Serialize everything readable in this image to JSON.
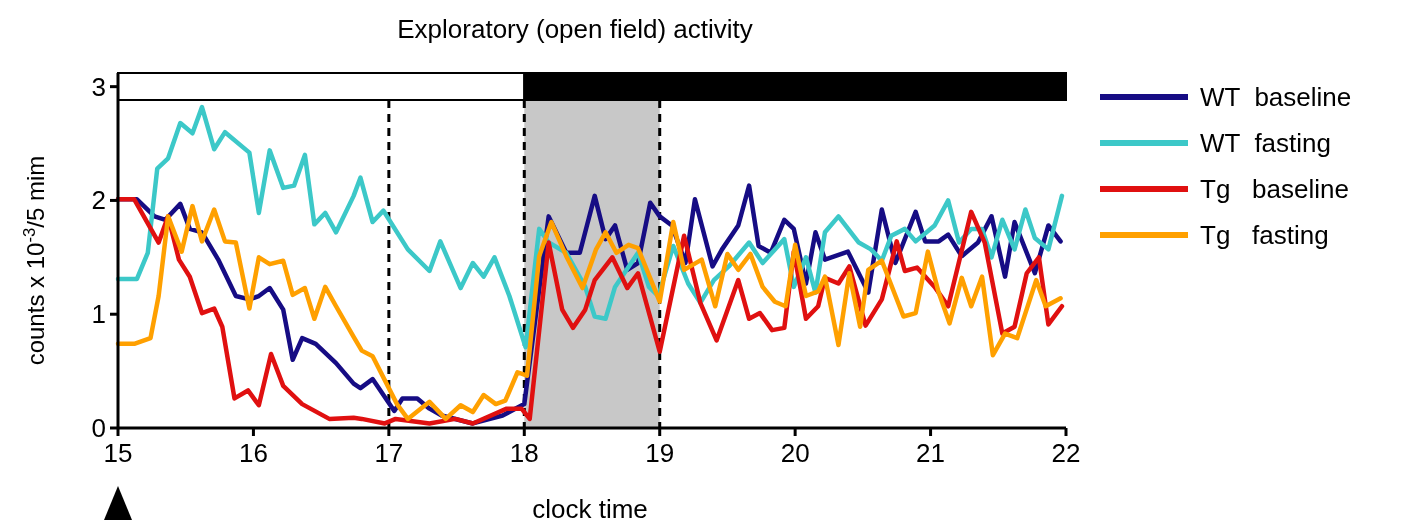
{
  "chart_data": {
    "type": "line",
    "title": "Exploratory (open field) activity",
    "xlabel": "clock time",
    "ylabel": "counts x 10$^{-3}$/5 mim",
    "xlim": [
      15,
      22
    ],
    "xticks": [
      15,
      16,
      17,
      18,
      19,
      20,
      21,
      22
    ],
    "ylim": [
      0,
      3.12
    ],
    "yticks": [
      0,
      1,
      2,
      3
    ],
    "legend": "right",
    "line_style": "solid",
    "series": [
      {
        "name": "WT  baseline",
        "color": "#160c84",
        "x": [
          15.0,
          15.14,
          15.27,
          15.35,
          15.46,
          15.53,
          15.62,
          15.74,
          15.87,
          15.97,
          16.04,
          16.12,
          16.22,
          16.29,
          16.36,
          16.46,
          16.61,
          16.74,
          16.79,
          16.88,
          17.04,
          17.1,
          17.21,
          17.3,
          17.39,
          17.62,
          17.84,
          18.0,
          18.18,
          18.31,
          18.41,
          18.52,
          18.6,
          18.67,
          18.76,
          18.84,
          18.93,
          19.0,
          19.09,
          19.19,
          19.26,
          19.39,
          19.46,
          19.58,
          19.66,
          19.73,
          19.82,
          19.92,
          19.99,
          20.08,
          20.15,
          20.22,
          20.39,
          20.54,
          20.64,
          20.74,
          20.89,
          20.96,
          21.06,
          21.13,
          21.23,
          21.35,
          21.45,
          21.55,
          21.62,
          21.77,
          21.87,
          21.96
        ],
        "values": [
          2.01,
          2.01,
          1.86,
          1.83,
          1.97,
          1.75,
          1.72,
          1.48,
          1.16,
          1.13,
          1.16,
          1.23,
          1.04,
          0.6,
          0.79,
          0.74,
          0.57,
          0.39,
          0.35,
          0.43,
          0.15,
          0.26,
          0.26,
          0.17,
          0.11,
          0.04,
          0.11,
          0.21,
          1.86,
          1.54,
          1.54,
          2.04,
          1.66,
          1.78,
          1.39,
          1.45,
          1.98,
          1.86,
          1.78,
          1.45,
          2.01,
          1.42,
          1.57,
          1.78,
          2.13,
          1.6,
          1.54,
          1.83,
          1.75,
          1.27,
          1.72,
          1.48,
          1.55,
          1.19,
          1.92,
          1.45,
          1.9,
          1.64,
          1.64,
          1.7,
          1.51,
          1.63,
          1.86,
          1.33,
          1.81,
          1.36,
          1.78,
          1.64
        ]
      },
      {
        "name": "WT  fasting",
        "color": "#3cc8c8",
        "x": [
          15.0,
          15.14,
          15.22,
          15.29,
          15.37,
          15.46,
          15.55,
          15.62,
          15.71,
          15.79,
          15.97,
          16.04,
          16.12,
          16.22,
          16.3,
          16.38,
          16.45,
          16.53,
          16.61,
          16.74,
          16.79,
          16.88,
          16.96,
          17.14,
          17.3,
          17.38,
          17.53,
          17.62,
          17.7,
          17.78,
          17.89,
          18.01,
          18.11,
          18.18,
          18.31,
          18.45,
          18.52,
          18.6,
          18.67,
          18.84,
          18.92,
          18.99,
          19.1,
          19.21,
          19.3,
          19.4,
          19.51,
          19.66,
          19.76,
          19.92,
          19.99,
          20.08,
          20.15,
          20.22,
          20.32,
          20.47,
          20.56,
          20.64,
          20.71,
          20.81,
          20.89,
          21.03,
          21.13,
          21.21,
          21.3,
          21.38,
          21.45,
          21.53,
          21.62,
          21.7,
          21.77,
          21.87,
          21.97
        ],
        "values": [
          1.31,
          1.31,
          1.54,
          2.28,
          2.37,
          2.68,
          2.59,
          2.82,
          2.45,
          2.6,
          2.42,
          1.89,
          2.44,
          2.11,
          2.13,
          2.4,
          1.79,
          1.89,
          1.72,
          2.04,
          2.2,
          1.81,
          1.91,
          1.57,
          1.38,
          1.64,
          1.23,
          1.45,
          1.33,
          1.5,
          1.16,
          0.71,
          1.75,
          1.63,
          1.54,
          1.24,
          0.98,
          0.96,
          1.24,
          1.54,
          1.24,
          1.16,
          1.6,
          1.27,
          1.1,
          1.3,
          1.42,
          1.63,
          1.45,
          1.66,
          1.24,
          1.5,
          1.19,
          1.72,
          1.86,
          1.63,
          1.57,
          1.47,
          1.69,
          1.75,
          1.64,
          1.78,
          2.0,
          1.63,
          1.75,
          1.75,
          1.5,
          1.83,
          1.57,
          1.92,
          1.67,
          1.57,
          2.04
        ]
      },
      {
        "name": "Tg   baseline",
        "color": "#e01010",
        "x": [
          15.0,
          15.12,
          15.3,
          15.37,
          15.45,
          15.53,
          15.62,
          15.71,
          15.77,
          15.86,
          15.96,
          16.04,
          16.13,
          16.22,
          16.36,
          16.56,
          16.74,
          16.8,
          16.97,
          17.05,
          17.3,
          17.49,
          17.62,
          17.87,
          17.98,
          18.04,
          18.18,
          18.28,
          18.36,
          18.45,
          18.52,
          18.65,
          18.76,
          18.84,
          19.0,
          19.18,
          19.3,
          19.42,
          19.58,
          19.66,
          19.74,
          19.83,
          19.92,
          19.99,
          20.08,
          20.17,
          20.22,
          20.32,
          20.4,
          20.52,
          20.64,
          20.75,
          20.81,
          20.9,
          21.03,
          21.13,
          21.3,
          21.4,
          21.53,
          21.62,
          21.71,
          21.8,
          21.87,
          21.97
        ],
        "values": [
          2.01,
          2.01,
          1.63,
          1.86,
          1.48,
          1.33,
          1.01,
          1.05,
          0.89,
          0.26,
          0.33,
          0.2,
          0.65,
          0.37,
          0.21,
          0.08,
          0.09,
          0.08,
          0.04,
          0.08,
          0.04,
          0.08,
          0.04,
          0.17,
          0.17,
          0.08,
          1.63,
          1.04,
          0.88,
          1.04,
          1.3,
          1.5,
          1.23,
          1.36,
          0.67,
          1.69,
          1.1,
          0.77,
          1.3,
          0.96,
          1.01,
          0.86,
          0.88,
          1.55,
          0.96,
          1.07,
          1.32,
          1.27,
          1.42,
          0.9,
          1.13,
          1.64,
          1.38,
          1.41,
          1.24,
          1.07,
          1.9,
          1.63,
          0.83,
          0.89,
          1.36,
          1.5,
          0.91,
          1.07
        ]
      },
      {
        "name": "Tg   fasting",
        "color": "#ffa000",
        "x": [
          15.0,
          15.12,
          15.24,
          15.3,
          15.37,
          15.47,
          15.55,
          15.62,
          15.71,
          15.79,
          15.87,
          15.97,
          16.04,
          16.12,
          16.22,
          16.29,
          16.38,
          16.45,
          16.53,
          16.61,
          16.74,
          16.8,
          16.88,
          17.06,
          17.14,
          17.3,
          17.42,
          17.53,
          17.62,
          17.7,
          17.79,
          17.86,
          17.95,
          18.02,
          18.11,
          18.2,
          18.31,
          18.43,
          18.53,
          18.6,
          18.68,
          18.77,
          18.84,
          19.0,
          19.1,
          19.18,
          19.31,
          19.41,
          19.5,
          19.58,
          19.67,
          19.76,
          19.85,
          19.93,
          20.0,
          20.08,
          20.17,
          20.22,
          20.32,
          20.4,
          20.48,
          20.54,
          20.64,
          20.8,
          20.89,
          20.98,
          21.06,
          21.14,
          21.23,
          21.3,
          21.38,
          21.46,
          21.55,
          21.64,
          21.78,
          21.85,
          21.96
        ],
        "values": [
          0.74,
          0.74,
          0.79,
          1.16,
          1.86,
          1.55,
          1.95,
          1.64,
          1.92,
          1.64,
          1.63,
          1.05,
          1.5,
          1.44,
          1.47,
          1.17,
          1.23,
          0.96,
          1.24,
          1.07,
          0.8,
          0.68,
          0.63,
          0.21,
          0.08,
          0.23,
          0.08,
          0.2,
          0.14,
          0.29,
          0.21,
          0.24,
          0.49,
          0.46,
          1.51,
          1.81,
          1.51,
          1.23,
          1.57,
          1.72,
          1.54,
          1.61,
          1.58,
          1.11,
          1.81,
          1.39,
          1.48,
          1.07,
          1.53,
          1.39,
          1.53,
          1.24,
          1.11,
          1.07,
          1.61,
          1.16,
          1.2,
          1.33,
          0.73,
          1.36,
          0.89,
          1.39,
          1.47,
          0.98,
          1.01,
          1.55,
          1.19,
          0.92,
          1.32,
          1.07,
          1.33,
          0.64,
          0.83,
          0.79,
          1.3,
          1.07,
          1.14
        ]
      }
    ],
    "bands": [
      {
        "axis": "x",
        "from": 18,
        "to": 19,
        "color": "#c8c8c8"
      }
    ],
    "ref_lines": [
      {
        "axis": "x",
        "value": 17,
        "line_style": "dashed"
      },
      {
        "axis": "x",
        "value": 18,
        "line_style": "dashed"
      },
      {
        "axis": "x",
        "value": 19,
        "line_style": "dashed"
      }
    ]
  }
}
